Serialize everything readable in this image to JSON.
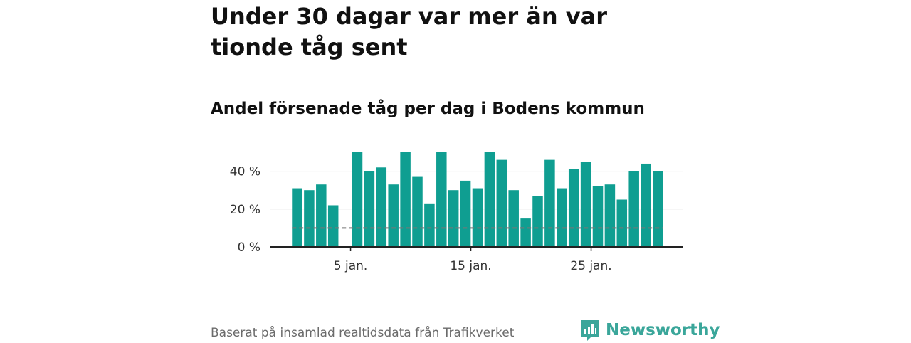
{
  "title": "Under 30 dagar var mer än var tionde tåg sent",
  "subtitle": "Andel försenade tåg per dag i Bodens kommun",
  "source": "Baserat på insamlad realtidsdata från Trafikverket",
  "logo": {
    "text": "Newsworthy",
    "icon": "newsworthy-logo-icon",
    "color": "#3aa69a"
  },
  "colors": {
    "bar": "#0f9e91",
    "reference_line": "#777777",
    "grid": "#dddddd",
    "axis": "#222222"
  },
  "chart_data": {
    "type": "bar",
    "x": [
      1,
      2,
      3,
      4,
      5,
      6,
      7,
      8,
      9,
      10,
      11,
      12,
      13,
      14,
      15,
      16,
      17,
      18,
      19,
      20,
      21,
      22,
      23,
      24,
      25,
      26,
      27,
      28,
      29,
      30,
      31
    ],
    "values": [
      31,
      30,
      33,
      22,
      null,
      50,
      40,
      42,
      33,
      50,
      37,
      23,
      50,
      30,
      35,
      31,
      50,
      46,
      30,
      15,
      27,
      46,
      31,
      41,
      45,
      32,
      33,
      25,
      40,
      44,
      40
    ],
    "x_ticks": [
      {
        "x": 5,
        "label": "5 jan."
      },
      {
        "x": 15,
        "label": "15 jan."
      },
      {
        "x": 25,
        "label": "25 jan."
      }
    ],
    "y_ticks": [
      {
        "value": 0,
        "label": "0 %"
      },
      {
        "value": 20,
        "label": "20 %"
      },
      {
        "value": 40,
        "label": "40 %"
      }
    ],
    "ylim": [
      0,
      50
    ],
    "reference_line": 10,
    "grid": true,
    "xlabel": "",
    "ylabel": ""
  }
}
